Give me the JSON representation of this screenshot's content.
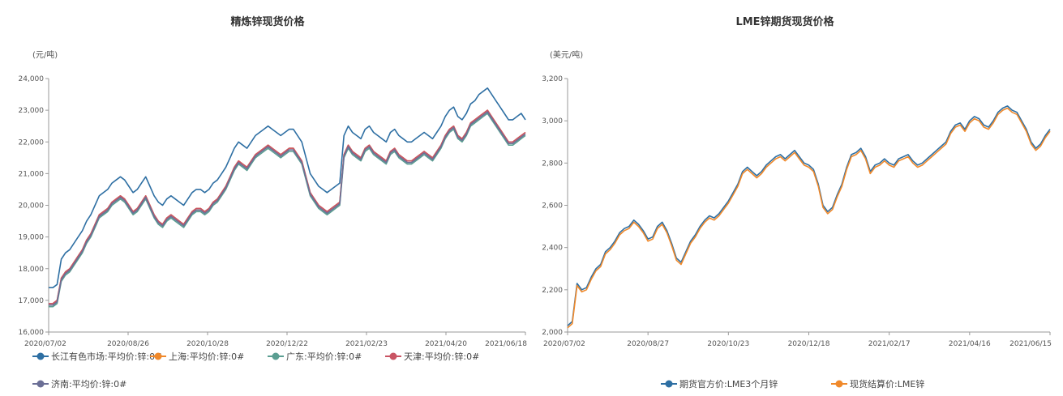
{
  "chart_data": [
    {
      "type": "line",
      "title": "精炼锌现货价格",
      "ylabel": "(元/吨)",
      "ylim": [
        16000,
        24000
      ],
      "yticks": [
        "16,000",
        "17,000",
        "18,000",
        "19,000",
        "20,000",
        "21,000",
        "22,000",
        "23,000",
        "24,000"
      ],
      "xticks": [
        "2020/07/02",
        "2020/08/26",
        "2020/10/28",
        "2020/12/22",
        "2021/02/23",
        "2021/04/20",
        "2021/06/18"
      ],
      "legend_position": "bottom",
      "series": [
        {
          "name": "长江有色市场:平均价:锌:0#",
          "color": "#2e6fa3",
          "values": [
            17400,
            17400,
            17500,
            18300,
            18500,
            18600,
            18800,
            19000,
            19200,
            19500,
            19700,
            20000,
            20300,
            20400,
            20500,
            20700,
            20800,
            20900,
            20800,
            20600,
            20400,
            20500,
            20700,
            20900,
            20600,
            20300,
            20100,
            20000,
            20200,
            20300,
            20200,
            20100,
            20000,
            20200,
            20400,
            20500,
            20500,
            20400,
            20500,
            20700,
            20800,
            21000,
            21200,
            21500,
            21800,
            22000,
            21900,
            21800,
            22000,
            22200,
            22300,
            22400,
            22500,
            22400,
            22300,
            22200,
            22300,
            22400,
            22400,
            22200,
            22000,
            21500,
            21000,
            20800,
            20600,
            20500,
            20400,
            20500,
            20600,
            20700,
            22200,
            22500,
            22300,
            22200,
            22100,
            22400,
            22500,
            22300,
            22200,
            22100,
            22000,
            22300,
            22400,
            22200,
            22100,
            22000,
            22000,
            22100,
            22200,
            22300,
            22200,
            22100,
            22300,
            22500,
            22800,
            23000,
            23100,
            22800,
            22700,
            22900,
            23200,
            23300,
            23500,
            23600,
            23700,
            23500,
            23300,
            23100,
            22900,
            22700,
            22700,
            22800,
            22900,
            22700
          ]
        },
        {
          "name": "上海:平均价:锌:0#",
          "color": "#f0892b",
          "values": [
            16900,
            16900,
            17000,
            17700,
            17900,
            18000,
            18200,
            18400,
            18600,
            18900,
            19100,
            19400,
            19700,
            19800,
            19900,
            20100,
            20200,
            20300,
            20200,
            20000,
            19800,
            19900,
            20100,
            20300,
            20000,
            19700,
            19500,
            19400,
            19600,
            19700,
            19600,
            19500,
            19400,
            19600,
            19800,
            19900,
            19900,
            19800,
            19900,
            20100,
            20200,
            20400,
            20600,
            20900,
            21200,
            21400,
            21300,
            21200,
            21400,
            21600,
            21700,
            21800,
            21900,
            21800,
            21700,
            21600,
            21700,
            21800,
            21800,
            21600,
            21400,
            20900,
            20400,
            20200,
            20000,
            19900,
            19800,
            19900,
            20000,
            20100,
            21600,
            21900,
            21700,
            21600,
            21500,
            21800,
            21900,
            21700,
            21600,
            21500,
            21400,
            21700,
            21800,
            21600,
            21500,
            21400,
            21400,
            21500,
            21600,
            21700,
            21600,
            21500,
            21700,
            21900,
            22200,
            22400,
            22500,
            22200,
            22100,
            22300,
            22600,
            22700,
            22800,
            22900,
            23000,
            22800,
            22600,
            22400,
            22200,
            22000,
            22000,
            22100,
            22200,
            22300
          ]
        },
        {
          "name": "广东:平均价:锌:0#",
          "color": "#5b9e92",
          "values": [
            16800,
            16800,
            16900,
            17600,
            17800,
            17900,
            18100,
            18300,
            18500,
            18800,
            19000,
            19300,
            19600,
            19700,
            19800,
            20000,
            20100,
            20200,
            20100,
            19900,
            19700,
            19800,
            20000,
            20200,
            19900,
            19600,
            19400,
            19300,
            19500,
            19600,
            19500,
            19400,
            19300,
            19500,
            19700,
            19800,
            19800,
            19700,
            19800,
            20000,
            20100,
            20300,
            20500,
            20800,
            21100,
            21300,
            21200,
            21100,
            21300,
            21500,
            21600,
            21700,
            21800,
            21700,
            21600,
            21500,
            21600,
            21700,
            21700,
            21500,
            21300,
            20800,
            20300,
            20100,
            19900,
            19800,
            19700,
            19800,
            19900,
            20000,
            21500,
            21800,
            21600,
            21500,
            21400,
            21700,
            21800,
            21600,
            21500,
            21400,
            21300,
            21600,
            21700,
            21500,
            21400,
            21300,
            21300,
            21400,
            21500,
            21600,
            21500,
            21400,
            21600,
            21800,
            22100,
            22300,
            22400,
            22100,
            22000,
            22200,
            22500,
            22600,
            22700,
            22800,
            22900,
            22700,
            22500,
            22300,
            22100,
            21900,
            21900,
            22000,
            22100,
            22200
          ]
        },
        {
          "name": "天津:平均价:锌:0#",
          "color": "#c95463",
          "values": [
            16900,
            16900,
            17000,
            17700,
            17900,
            18000,
            18200,
            18400,
            18600,
            18900,
            19100,
            19400,
            19700,
            19800,
            19900,
            20100,
            20200,
            20300,
            20200,
            20000,
            19800,
            19900,
            20100,
            20300,
            20000,
            19700,
            19500,
            19400,
            19600,
            19700,
            19600,
            19500,
            19400,
            19600,
            19800,
            19900,
            19900,
            19800,
            19900,
            20100,
            20200,
            20400,
            20600,
            20900,
            21200,
            21400,
            21300,
            21200,
            21400,
            21600,
            21700,
            21800,
            21900,
            21800,
            21700,
            21600,
            21700,
            21800,
            21800,
            21600,
            21400,
            20900,
            20400,
            20200,
            20000,
            19900,
            19800,
            19900,
            20000,
            20100,
            21600,
            21900,
            21700,
            21600,
            21500,
            21800,
            21900,
            21700,
            21600,
            21500,
            21400,
            21700,
            21800,
            21600,
            21500,
            21400,
            21400,
            21500,
            21600,
            21700,
            21600,
            21500,
            21700,
            21900,
            22200,
            22400,
            22500,
            22200,
            22100,
            22300,
            22600,
            22700,
            22800,
            22900,
            23000,
            22800,
            22600,
            22400,
            22200,
            22000,
            22000,
            22100,
            22200,
            22300
          ]
        },
        {
          "name": "济南:平均价:锌:0#",
          "color": "#6b6f96",
          "values": [
            16850,
            16850,
            16950,
            17650,
            17850,
            17950,
            18150,
            18350,
            18550,
            18850,
            19050,
            19350,
            19650,
            19750,
            19850,
            20050,
            20150,
            20250,
            20150,
            19950,
            19750,
            19850,
            20050,
            20250,
            19950,
            19650,
            19450,
            19350,
            19550,
            19650,
            19550,
            19450,
            19350,
            19550,
            19750,
            19850,
            19850,
            19750,
            19850,
            20050,
            20150,
            20350,
            20550,
            20850,
            21150,
            21350,
            21250,
            21150,
            21350,
            21550,
            21650,
            21750,
            21850,
            21750,
            21650,
            21550,
            21650,
            21750,
            21750,
            21550,
            21350,
            20850,
            20350,
            20150,
            19950,
            19850,
            19750,
            19850,
            19950,
            20050,
            21550,
            21850,
            21650,
            21550,
            21450,
            21750,
            21850,
            21650,
            21550,
            21450,
            21350,
            21650,
            21750,
            21550,
            21450,
            21350,
            21350,
            21450,
            21550,
            21650,
            21550,
            21450,
            21650,
            21850,
            22150,
            22350,
            22450,
            22150,
            22050,
            22250,
            22550,
            22650,
            22750,
            22850,
            22950,
            22750,
            22550,
            22350,
            22150,
            21950,
            21950,
            22050,
            22150,
            22250
          ]
        }
      ]
    },
    {
      "type": "line",
      "title": "LME锌期货现货价格",
      "ylabel": "(美元/吨)",
      "ylim": [
        2000,
        3200
      ],
      "yticks": [
        "2,000",
        "2,200",
        "2,400",
        "2,600",
        "2,800",
        "3,000",
        "3,200"
      ],
      "xticks": [
        "2020/07/02",
        "2020/08/27",
        "2020/10/23",
        "2020/12/18",
        "2021/02/17",
        "2021/04/16",
        "2021/06/15"
      ],
      "legend_position": "bottom",
      "series": [
        {
          "name": "期货官方价:LME3个月锌",
          "color": "#2e6fa3",
          "values": [
            2030,
            2050,
            2230,
            2200,
            2210,
            2260,
            2300,
            2320,
            2380,
            2400,
            2430,
            2470,
            2490,
            2500,
            2530,
            2510,
            2480,
            2440,
            2450,
            2500,
            2520,
            2480,
            2420,
            2350,
            2330,
            2380,
            2430,
            2460,
            2500,
            2530,
            2550,
            2540,
            2560,
            2590,
            2620,
            2660,
            2700,
            2760,
            2780,
            2760,
            2740,
            2760,
            2790,
            2810,
            2830,
            2840,
            2820,
            2840,
            2860,
            2830,
            2800,
            2790,
            2770,
            2700,
            2600,
            2570,
            2590,
            2650,
            2700,
            2780,
            2840,
            2850,
            2870,
            2830,
            2760,
            2790,
            2800,
            2820,
            2800,
            2790,
            2820,
            2830,
            2840,
            2810,
            2790,
            2800,
            2820,
            2840,
            2860,
            2880,
            2900,
            2950,
            2980,
            2990,
            2960,
            3000,
            3020,
            3010,
            2980,
            2970,
            3000,
            3040,
            3060,
            3070,
            3050,
            3040,
            3000,
            2960,
            2900,
            2870,
            2890,
            2930,
            2960
          ]
        },
        {
          "name": "现货结算价:LME锌",
          "color": "#f0892b",
          "values": [
            2020,
            2040,
            2220,
            2190,
            2200,
            2250,
            2290,
            2310,
            2370,
            2390,
            2420,
            2460,
            2480,
            2490,
            2520,
            2500,
            2470,
            2430,
            2440,
            2490,
            2510,
            2470,
            2410,
            2340,
            2320,
            2370,
            2420,
            2450,
            2490,
            2520,
            2540,
            2530,
            2550,
            2580,
            2610,
            2650,
            2690,
            2750,
            2770,
            2750,
            2730,
            2750,
            2780,
            2800,
            2820,
            2830,
            2810,
            2830,
            2850,
            2820,
            2790,
            2780,
            2760,
            2690,
            2590,
            2560,
            2580,
            2640,
            2690,
            2770,
            2830,
            2840,
            2860,
            2820,
            2750,
            2780,
            2790,
            2810,
            2790,
            2780,
            2810,
            2820,
            2830,
            2800,
            2780,
            2790,
            2810,
            2830,
            2850,
            2870,
            2890,
            2940,
            2970,
            2980,
            2950,
            2990,
            3010,
            3000,
            2970,
            2960,
            2990,
            3030,
            3050,
            3060,
            3040,
            3030,
            2990,
            2950,
            2890,
            2860,
            2880,
            2920,
            2950
          ]
        }
      ]
    }
  ]
}
